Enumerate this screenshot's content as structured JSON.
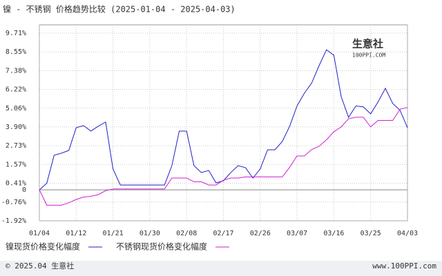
{
  "chart_data": {
    "type": "line",
    "title": "镍 - 不锈钢 价格趋势比较 (2025-01-04 - 2025-04-03)",
    "categories": [
      "01/04",
      null,
      null,
      null,
      null,
      "01/12",
      null,
      null,
      null,
      null,
      "01/21",
      null,
      null,
      null,
      null,
      "01/30",
      null,
      null,
      null,
      null,
      "02/08",
      null,
      null,
      null,
      null,
      "02/17",
      null,
      null,
      null,
      null,
      "02/26",
      null,
      null,
      null,
      null,
      "03/07",
      null,
      null,
      null,
      null,
      "03/16",
      null,
      null,
      null,
      null,
      "03/25",
      null,
      null,
      null,
      null,
      "04/03"
    ],
    "series": [
      {
        "name": "镍现货价格变化幅度",
        "color": "#1f1fc8",
        "values": [
          0.0,
          0.4,
          2.14,
          2.27,
          2.44,
          3.85,
          3.98,
          3.64,
          3.94,
          4.2,
          1.29,
          0.3,
          0.3,
          0.3,
          0.3,
          0.3,
          0.3,
          0.3,
          1.5,
          3.64,
          3.64,
          1.5,
          1.07,
          1.2,
          0.43,
          0.56,
          1.07,
          1.5,
          1.37,
          0.73,
          1.29,
          2.48,
          2.48,
          3.0,
          3.94,
          5.2,
          5.99,
          6.63,
          7.7,
          8.68,
          8.34,
          5.77,
          4.49,
          5.2,
          5.14,
          4.71,
          5.44,
          6.29,
          5.35,
          4.92,
          3.85
        ]
      },
      {
        "name": "不锈钢现货价格变化幅度",
        "color": "#d01cd0",
        "values": [
          0.0,
          -0.95,
          -0.95,
          -0.95,
          -0.8,
          -0.6,
          -0.45,
          -0.4,
          -0.3,
          -0.05,
          0.05,
          0.05,
          0.05,
          0.05,
          0.05,
          0.05,
          0.05,
          0.05,
          0.73,
          0.73,
          0.73,
          0.5,
          0.5,
          0.3,
          0.3,
          0.6,
          0.73,
          0.73,
          0.8,
          0.8,
          0.8,
          0.8,
          0.8,
          0.8,
          1.4,
          2.1,
          2.1,
          2.5,
          2.7,
          3.1,
          3.6,
          3.9,
          4.4,
          4.5,
          4.5,
          3.9,
          4.3,
          4.3,
          4.3,
          5.0,
          5.1
        ]
      }
    ],
    "ylim": [
      -1.92,
      9.71
    ],
    "yticks": [
      {
        "value": 9.71,
        "label": "9.71%"
      },
      {
        "value": 8.55,
        "label": "8.55%"
      },
      {
        "value": 7.38,
        "label": "7.38%"
      },
      {
        "value": 6.22,
        "label": "6.22%"
      },
      {
        "value": 5.06,
        "label": "5.06%"
      },
      {
        "value": 3.9,
        "label": "3.90%"
      },
      {
        "value": 2.73,
        "label": "2.73%"
      },
      {
        "value": 1.57,
        "label": "1.57%"
      },
      {
        "value": 0.41,
        "label": "0.41%"
      },
      0,
      {
        "value": -0.76,
        "label": "-0.76%"
      },
      {
        "value": -1.92,
        "label": "-1.92%"
      }
    ],
    "grid": true,
    "watermark": {
      "name": "生意社",
      "site": "100PPI.COM"
    },
    "footer": {
      "left": "© 2025.04 生意社",
      "right": "www.100PPI.com"
    }
  }
}
